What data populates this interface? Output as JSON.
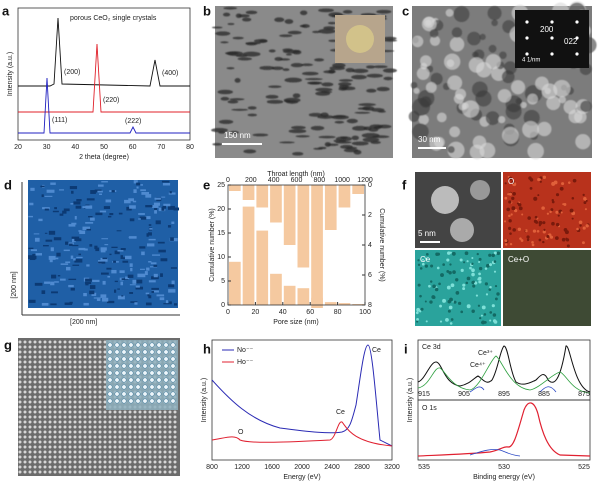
{
  "panels": {
    "a": {
      "label": "a",
      "legend": "porous CeO₂ single crystals",
      "peaks": [
        "(200)",
        "(220)",
        "(400)",
        "(111)",
        "(222)"
      ],
      "ylabel": "Intensity (a.u.)",
      "xlabel": "2 theta (degree)",
      "xticks": [
        20,
        30,
        40,
        50,
        60,
        70,
        80
      ]
    },
    "b": {
      "label": "b",
      "scale": "150 nm"
    },
    "c": {
      "label": "c",
      "scale": "30 nm",
      "inset_scale": "4 1/nm",
      "spots": [
        "200",
        "022"
      ]
    },
    "d": {
      "label": "d",
      "left": "[200 nm]",
      "bottom": "[200 nm]"
    },
    "e": {
      "label": "e",
      "top_label": "Throat length (nm)",
      "top_ticks": [
        0,
        200,
        400,
        600,
        800,
        1000,
        1200
      ],
      "ylabel": "Cumulative number (%)",
      "yticks": [
        0,
        5,
        10,
        15,
        20,
        25
      ],
      "ylim": [
        0,
        25
      ],
      "y2label": "Cumulative number (%)",
      "y2ticks": [
        0,
        2,
        4,
        6,
        8
      ],
      "y2lim": [
        0,
        8
      ],
      "xlabel": "Pore size (nm)",
      "xticks": [
        0,
        20,
        40,
        60,
        80,
        100
      ],
      "xlim": [
        0,
        100
      ],
      "bins": [
        0,
        10,
        20,
        30,
        40,
        50,
        60,
        70,
        80,
        90,
        100
      ],
      "values": [
        9,
        20.5,
        15.5,
        6.5,
        4,
        3.5,
        1.5,
        0.6,
        0.4,
        0.2
      ],
      "top_values": [
        0.4,
        1,
        1.5,
        2.5,
        4,
        5.5,
        8.2,
        3,
        1.5,
        0.6
      ],
      "color": "#f5c9a0"
    },
    "f": {
      "label": "f",
      "scale": "5 nm",
      "maps": [
        "O",
        "Ce",
        "Ce+O"
      ]
    },
    "g": {
      "label": "g"
    },
    "h": {
      "label": "h",
      "legend": [
        "No⁻⁻",
        "Ho⁻⁻"
      ],
      "peaks": [
        "Ce",
        "Ce",
        "O"
      ],
      "xticks": [
        800,
        1200,
        1600,
        2000,
        2400,
        2800,
        3200
      ],
      "xlabel": "Energy (eV)",
      "ylabel": "Intensity (a.u.)"
    },
    "i": {
      "label": "i",
      "top_title": "Ce 3d",
      "species": [
        "Ce³⁺",
        "Ce⁴⁺"
      ],
      "top_ticks": [
        "915",
        "905",
        "895",
        "885",
        "875"
      ],
      "bottom_title": "O 1s",
      "bottom_ticks": [
        "535",
        "530",
        "525"
      ],
      "xlabel": "Binding energy (eV)",
      "ylabel": "Intensity (a.u.)"
    }
  }
}
